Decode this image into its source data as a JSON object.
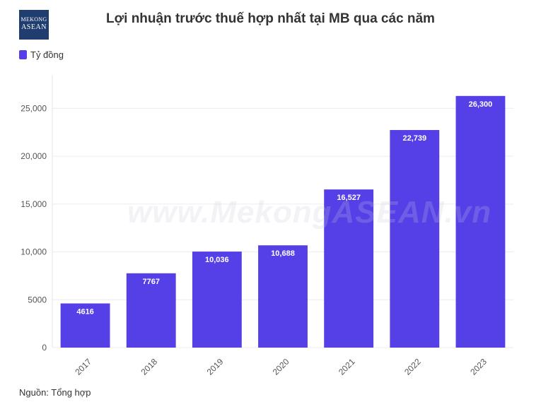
{
  "logo": {
    "line1": "MEKONG",
    "line2": "ASEAN",
    "line3": ""
  },
  "watermark": "www.MekongASEAN.vn",
  "legend": {
    "label": "Tỷ đồng",
    "color": "#5540e8"
  },
  "source": "Nguồn: Tổng hợp",
  "chart_data": {
    "type": "bar",
    "title": "Lợi nhuận trước thuế hợp nhất tại MB qua các năm",
    "xlabel": "",
    "ylabel": "",
    "categories": [
      "2017",
      "2018",
      "2019",
      "2020",
      "2021",
      "2022",
      "2023"
    ],
    "series": [
      {
        "name": "Tỷ đồng",
        "color": "#5540e8",
        "values": [
          4616,
          7767,
          10036,
          10688,
          16527,
          22739,
          26300
        ],
        "labels": [
          "4616",
          "7767",
          "10,036",
          "10,688",
          "16,527",
          "22,739",
          "26,300"
        ]
      }
    ],
    "ylim": [
      0,
      28500
    ],
    "yticks": [
      0,
      5000,
      10000,
      15000,
      20000,
      25000
    ],
    "ytick_labels": [
      "0",
      "5000",
      "10,000",
      "15,000",
      "20,000",
      "25,000"
    ],
    "grid": true,
    "legend_position": "top-left"
  }
}
